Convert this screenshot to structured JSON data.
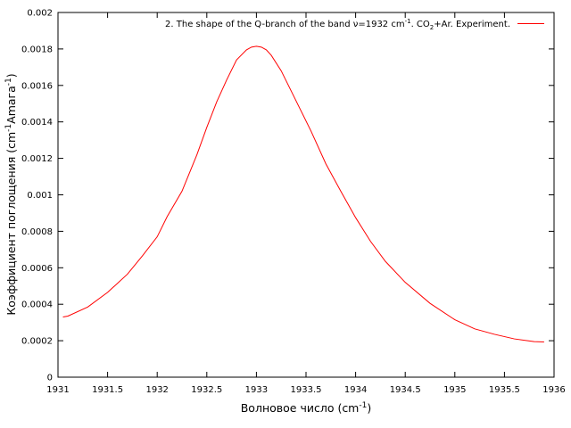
{
  "chart_data": {
    "type": "line",
    "title": "",
    "xlabel": "Волновое число (cm",
    "xlabel_sup": "-1",
    "xlabel_tail": ")",
    "ylabel": "Коэффициент поглощения (cm",
    "ylabel_sup1": "-1",
    "ylabel_mid": "Amага",
    "ylabel_sup2": "-1",
    "ylabel_tail": ")",
    "xlim": [
      1931,
      1936
    ],
    "ylim": [
      0,
      0.002
    ],
    "x_ticks": [
      "1931",
      "1931.5",
      "1932",
      "1932.5",
      "1933",
      "1933.5",
      "1934",
      "1934.5",
      "1935",
      "1935.5",
      "1936"
    ],
    "y_ticks": [
      "0",
      "0.0002",
      "0.0004",
      "0.0006",
      "0.0008",
      "0.001",
      "0.0012",
      "0.0014",
      "0.0016",
      "0.0018",
      "0.002"
    ],
    "grid": false,
    "legend_position": "top-right",
    "legend": {
      "part1": "2. The shape of the Q-branch of the band ν=1932 cm",
      "sup1": "-1",
      "part2": ". CO",
      "sub": "2",
      "part3": "+Ar. Experiment."
    },
    "series": [
      {
        "color": "#ff0000",
        "x": [
          1931.05,
          1931.1,
          1931.3,
          1931.5,
          1931.7,
          1931.85,
          1932.0,
          1932.1,
          1932.25,
          1932.4,
          1932.5,
          1932.6,
          1932.7,
          1932.8,
          1932.9,
          1932.95,
          1933.0,
          1933.05,
          1933.1,
          1933.15,
          1933.25,
          1933.35,
          1933.45,
          1933.55,
          1933.7,
          1933.85,
          1934.0,
          1934.15,
          1934.3,
          1934.5,
          1934.75,
          1935.0,
          1935.2,
          1935.4,
          1935.6,
          1935.8,
          1935.9
        ],
        "y": [
          0.00033,
          0.000335,
          0.000385,
          0.000465,
          0.000565,
          0.000665,
          0.00077,
          0.00088,
          0.00102,
          0.00122,
          0.00137,
          0.00151,
          0.00163,
          0.00174,
          0.001795,
          0.00181,
          0.001815,
          0.00181,
          0.001795,
          0.001765,
          0.00168,
          0.00157,
          0.00146,
          0.00135,
          0.00117,
          0.00102,
          0.000875,
          0.000745,
          0.000635,
          0.00052,
          0.000405,
          0.000315,
          0.000265,
          0.000235,
          0.00021,
          0.000195,
          0.000193
        ]
      }
    ]
  }
}
